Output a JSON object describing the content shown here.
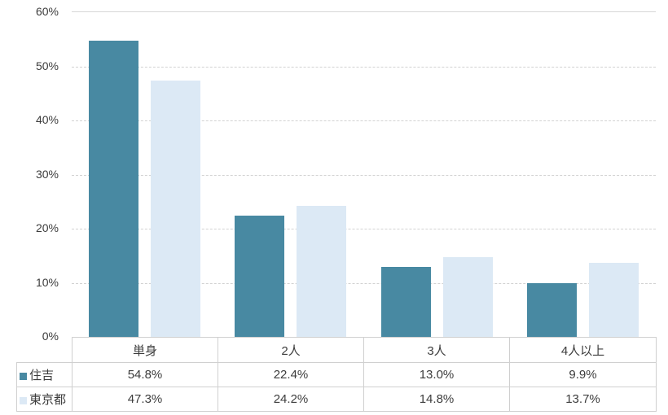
{
  "chart_data": {
    "type": "bar",
    "title": "",
    "xlabel": "",
    "ylabel": "",
    "categories": [
      "単身",
      "2人",
      "3人",
      "4人以上"
    ],
    "series": [
      {
        "name": "住吉",
        "color": "#4889a2",
        "values": [
          54.8,
          22.4,
          13.0,
          9.9
        ],
        "displays": [
          "54.8%",
          "22.4%",
          "13.0%",
          "9.9%"
        ]
      },
      {
        "name": "東京都",
        "color": "#dce9f5",
        "values": [
          47.3,
          24.2,
          14.8,
          13.7
        ],
        "displays": [
          "47.3%",
          "24.2%",
          "14.8%",
          "13.7%"
        ]
      }
    ],
    "ylim": [
      0,
      60
    ],
    "ytick_step": 10,
    "ytick_labels": [
      "0%",
      "10%",
      "20%",
      "30%",
      "40%",
      "50%",
      "60%"
    ],
    "grid": "horizontal-dashed",
    "legend_position": "data-table-left"
  },
  "colors": {
    "gridline": "#d2d2d2",
    "table_border": "#d0d0d0",
    "text": "#3c3c3c",
    "background": "#ffffff"
  }
}
